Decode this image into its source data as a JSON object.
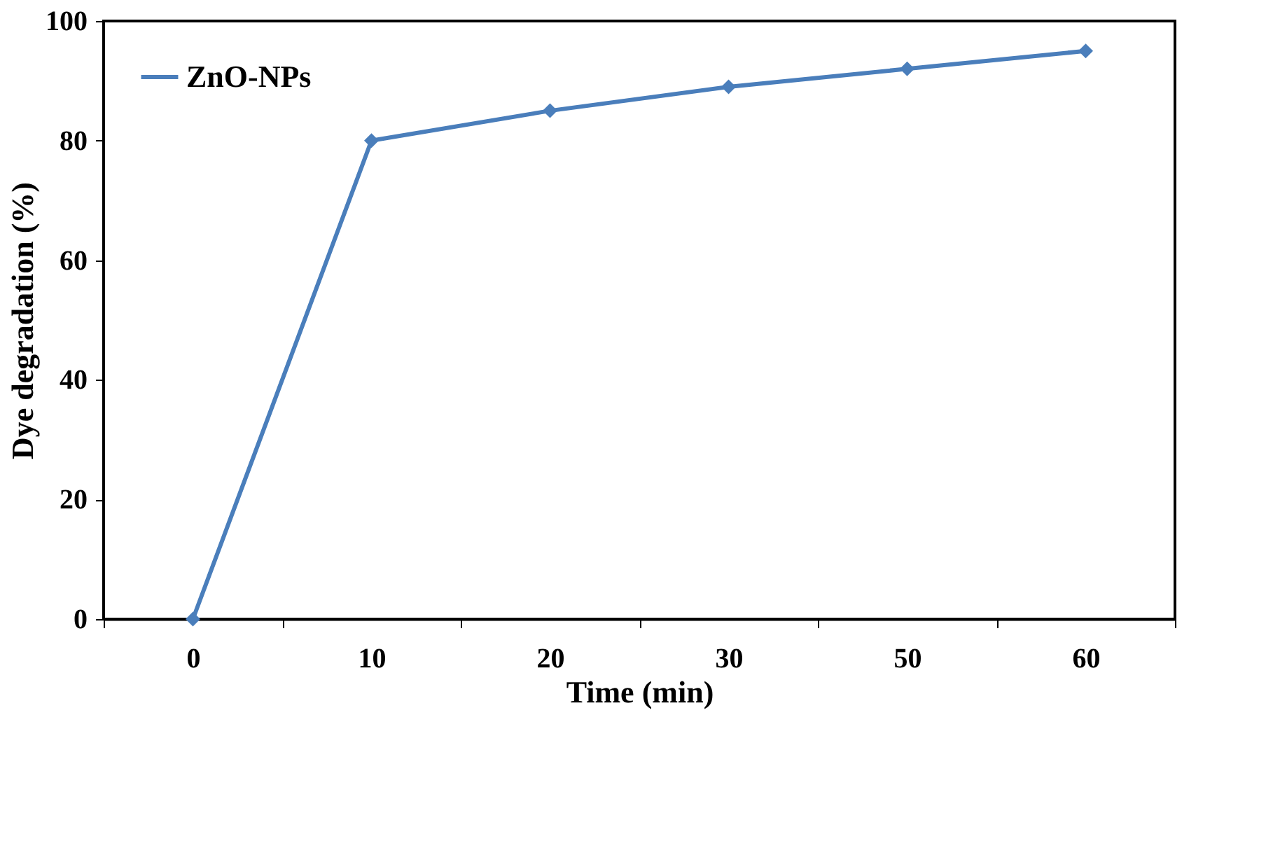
{
  "chart_data": {
    "type": "line",
    "xlabel": "Time (min)",
    "ylabel": "Dye degradation (%)",
    "categories": [
      "0",
      "10",
      "20",
      "30",
      "50",
      "60"
    ],
    "series": [
      {
        "name": "ZnO-NPs",
        "color": "#4a7ebb",
        "values": [
          0,
          80,
          85,
          89,
          92,
          95
        ]
      }
    ],
    "ylim": [
      0,
      100
    ],
    "yticks": [
      0,
      20,
      40,
      60,
      80,
      100
    ],
    "grid": false,
    "legend": "top left",
    "marker": "diamond",
    "line_style": "solid"
  }
}
